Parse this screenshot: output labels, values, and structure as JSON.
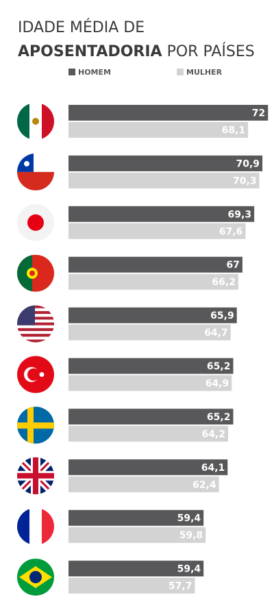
{
  "chart_data": {
    "type": "bar",
    "orientation": "horizontal",
    "title": [
      "IDADE MÉDIA DE",
      "APOSENTADORIA",
      "POR PAÍSES"
    ],
    "categories": [
      null,
      null,
      null,
      null,
      null,
      null,
      null,
      null,
      null,
      null
    ],
    "series": [
      {
        "name": "HOMEM",
        "color": "#58585a",
        "values": [
          72,
          70.9,
          69.3,
          67,
          65.9,
          65.2,
          65.2,
          64.1,
          59.4,
          59.4
        ],
        "value_labels": [
          "72",
          "70,9",
          "69,3",
          "67",
          "65,9",
          "65,2",
          "65,2",
          "64,1",
          "59,4",
          "59,4"
        ]
      },
      {
        "name": "MULHER",
        "color": "#d3d3d3",
        "values": [
          68.1,
          70.3,
          67.6,
          66.2,
          64.7,
          64.9,
          64.2,
          62.4,
          59.8,
          57.7
        ],
        "value_labels": [
          "68,1",
          "70,3",
          "67,6",
          "66,2",
          "64,7",
          "64,9",
          "64,2",
          "62,4",
          "59,8",
          "57,7"
        ]
      }
    ],
    "xlim": [
      33,
      72.5
    ]
  }
}
